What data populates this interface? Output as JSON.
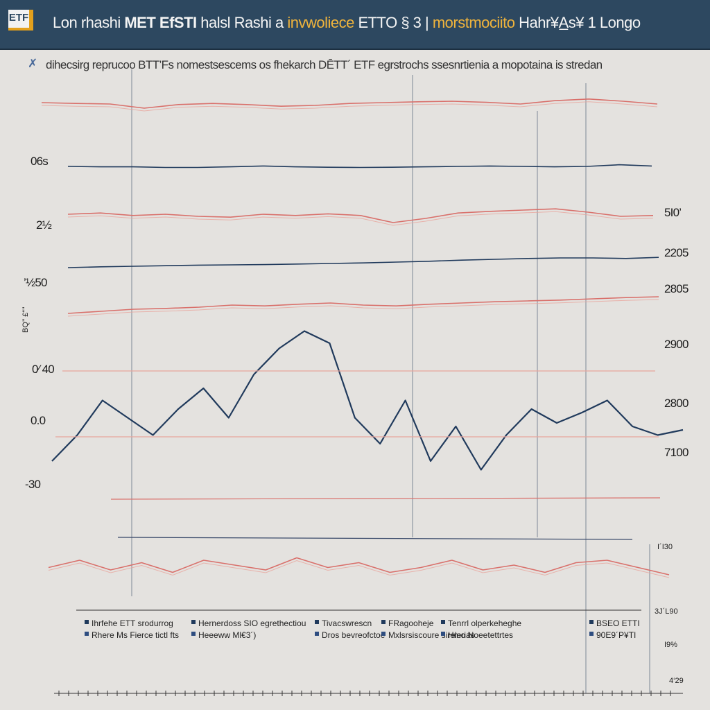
{
  "header": {
    "logo": "ETF",
    "title_parts": [
      {
        "text": "Lon rhashi ",
        "style": "normal"
      },
      {
        "text": "MET EfSTI",
        "style": "bold"
      },
      {
        "text": " halsl Rashi  a ",
        "style": "normal"
      },
      {
        "text": "invwoliece",
        "style": "accent"
      },
      {
        "text": " ETTO § 3  |  ",
        "style": "normal"
      },
      {
        "text": "morstmociito",
        "style": "accent"
      },
      {
        "text": " Hahr¥A̲s¥ 1 Longo",
        "style": "normal"
      }
    ]
  },
  "subtitle": {
    "icon": "chart-icon",
    "text": "dihecsirg reprucoo BTT’Fs nomestsescems os fhekarch  DĒTT´  ETF egrstrochs ssesnrtienia a mopotaina is stredan"
  },
  "colors": {
    "navy": "#203a5c",
    "red": "#d9706b",
    "pink": "#e8a59c",
    "grid": "#8f97a3"
  },
  "chart_data": {
    "type": "line",
    "title": "",
    "left_tick_labels": [
      "06s",
      "2½",
      "’½50",
      "0⁄ 40",
      "0.0",
      "-30"
    ],
    "right_tick_labels": [
      "5I0’",
      "2205",
      "2805",
      "2900",
      "2800",
      "7100"
    ],
    "vertical_axis_label": "BQ’’ £“’’",
    "series": [
      {
        "name": "",
        "color": "#d9706b",
        "values": [
          0.55,
          0.52,
          0.5,
          0.35,
          0.48,
          0.52,
          0.48,
          0.42,
          0.45,
          0.52,
          0.55,
          0.58,
          0.6,
          0.56,
          0.5,
          0.62,
          0.68,
          0.6,
          0.5
        ]
      },
      {
        "name": "",
        "color": "#203a5c",
        "values": [
          0.5,
          0.48,
          0.48,
          0.45,
          0.45,
          0.48,
          0.52,
          0.48,
          0.46,
          0.45,
          0.46,
          0.48,
          0.5,
          0.52,
          0.5,
          0.48,
          0.5,
          0.58,
          0.52
        ]
      },
      {
        "name": "",
        "color": "#d9706b",
        "values": [
          0.55,
          0.58,
          0.52,
          0.55,
          0.5,
          0.48,
          0.55,
          0.52,
          0.56,
          0.52,
          0.35,
          0.45,
          0.58,
          0.62,
          0.65,
          0.68,
          0.6,
          0.5,
          0.52
        ]
      },
      {
        "name": "",
        "color": "#203a5c",
        "values": [
          0.35,
          0.38,
          0.4,
          0.42,
          0.44,
          0.45,
          0.46,
          0.48,
          0.5,
          0.52,
          0.55,
          0.58,
          0.62,
          0.65,
          0.68,
          0.7,
          0.7,
          0.68,
          0.72
        ]
      },
      {
        "name": "",
        "color": "#d9706b",
        "values": [
          0.3,
          0.35,
          0.4,
          0.42,
          0.45,
          0.5,
          0.48,
          0.52,
          0.55,
          0.5,
          0.48,
          0.52,
          0.55,
          0.58,
          0.6,
          0.62,
          0.65,
          0.68,
          0.7
        ]
      },
      {
        "name": "",
        "color": "#203a5c",
        "values": [
          0.2,
          0.35,
          0.55,
          0.45,
          0.35,
          0.5,
          0.62,
          0.45,
          0.7,
          0.85,
          0.95,
          0.88,
          0.45,
          0.3,
          0.55,
          0.2,
          0.4,
          0.15,
          0.35,
          0.5,
          0.42,
          0.48,
          0.55,
          0.4,
          0.35,
          0.38
        ]
      },
      {
        "name": "",
        "color": "#d9706b",
        "values": [
          0.45,
          0.6,
          0.4,
          0.55,
          0.35,
          0.6,
          0.5,
          0.4,
          0.65,
          0.45,
          0.55,
          0.35,
          0.45,
          0.6,
          0.4,
          0.5,
          0.35,
          0.55,
          0.6,
          0.45,
          0.3
        ]
      }
    ],
    "legend_rows": [
      [
        "Ihrfehe  ETT  srodurrog",
        "Hernerdoss  SIO egrethectiou",
        "Tivacswrescn",
        "FRagooheje",
        "Tenrrl olperkeheghe",
        "BSEO ETTI"
      ],
      [
        "Rhere Ms Fierce  tictl fts",
        "Heeeww Ml€3´)",
        "Dros bevreofctoe",
        "Mxlsrsiscoure sirelerias",
        "Hmo Noeetettrtes",
        "90E9´P¥TI"
      ]
    ],
    "bottom_right_labels": [
      "I´I30",
      "3J´L90",
      "I9%",
      "4‘29"
    ],
    "grid": true,
    "legend": "bottom"
  }
}
